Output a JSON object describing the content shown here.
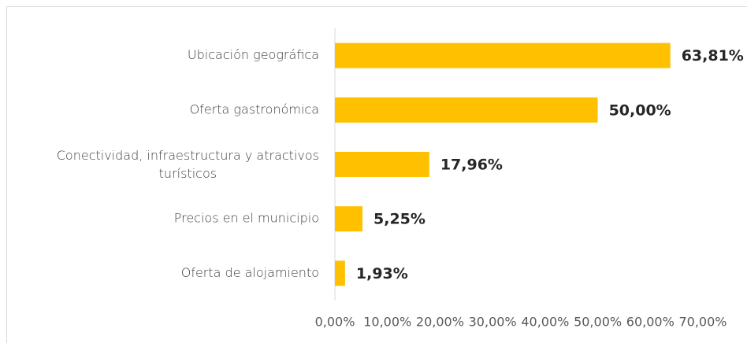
{
  "chart_data": {
    "type": "bar",
    "orientation": "horizontal",
    "categories": [
      "Ubicación geográfica",
      "Oferta gastronómica",
      "Conectividad, infraestructura y atractivos turísticos",
      "Precios en el municipio",
      "Oferta de alojamiento"
    ],
    "values": [
      63.81,
      50.0,
      17.96,
      5.25,
      1.93
    ],
    "value_labels": [
      "63,81%",
      "50,00%",
      "17,96%",
      "5,25%",
      "1,93%"
    ],
    "color": "#ffc000",
    "xlim": [
      0,
      70
    ],
    "xticks": [
      {
        "value": 0,
        "label": "0,00%"
      },
      {
        "value": 10,
        "label": "10,00%"
      },
      {
        "value": 20,
        "label": "20,00%"
      },
      {
        "value": 30,
        "label": "30,00%"
      },
      {
        "value": 40,
        "label": "40,00%"
      },
      {
        "value": 50,
        "label": "50,00%"
      },
      {
        "value": 60,
        "label": "60,00%"
      },
      {
        "value": 70,
        "label": "70,00%"
      }
    ],
    "grid": false
  }
}
